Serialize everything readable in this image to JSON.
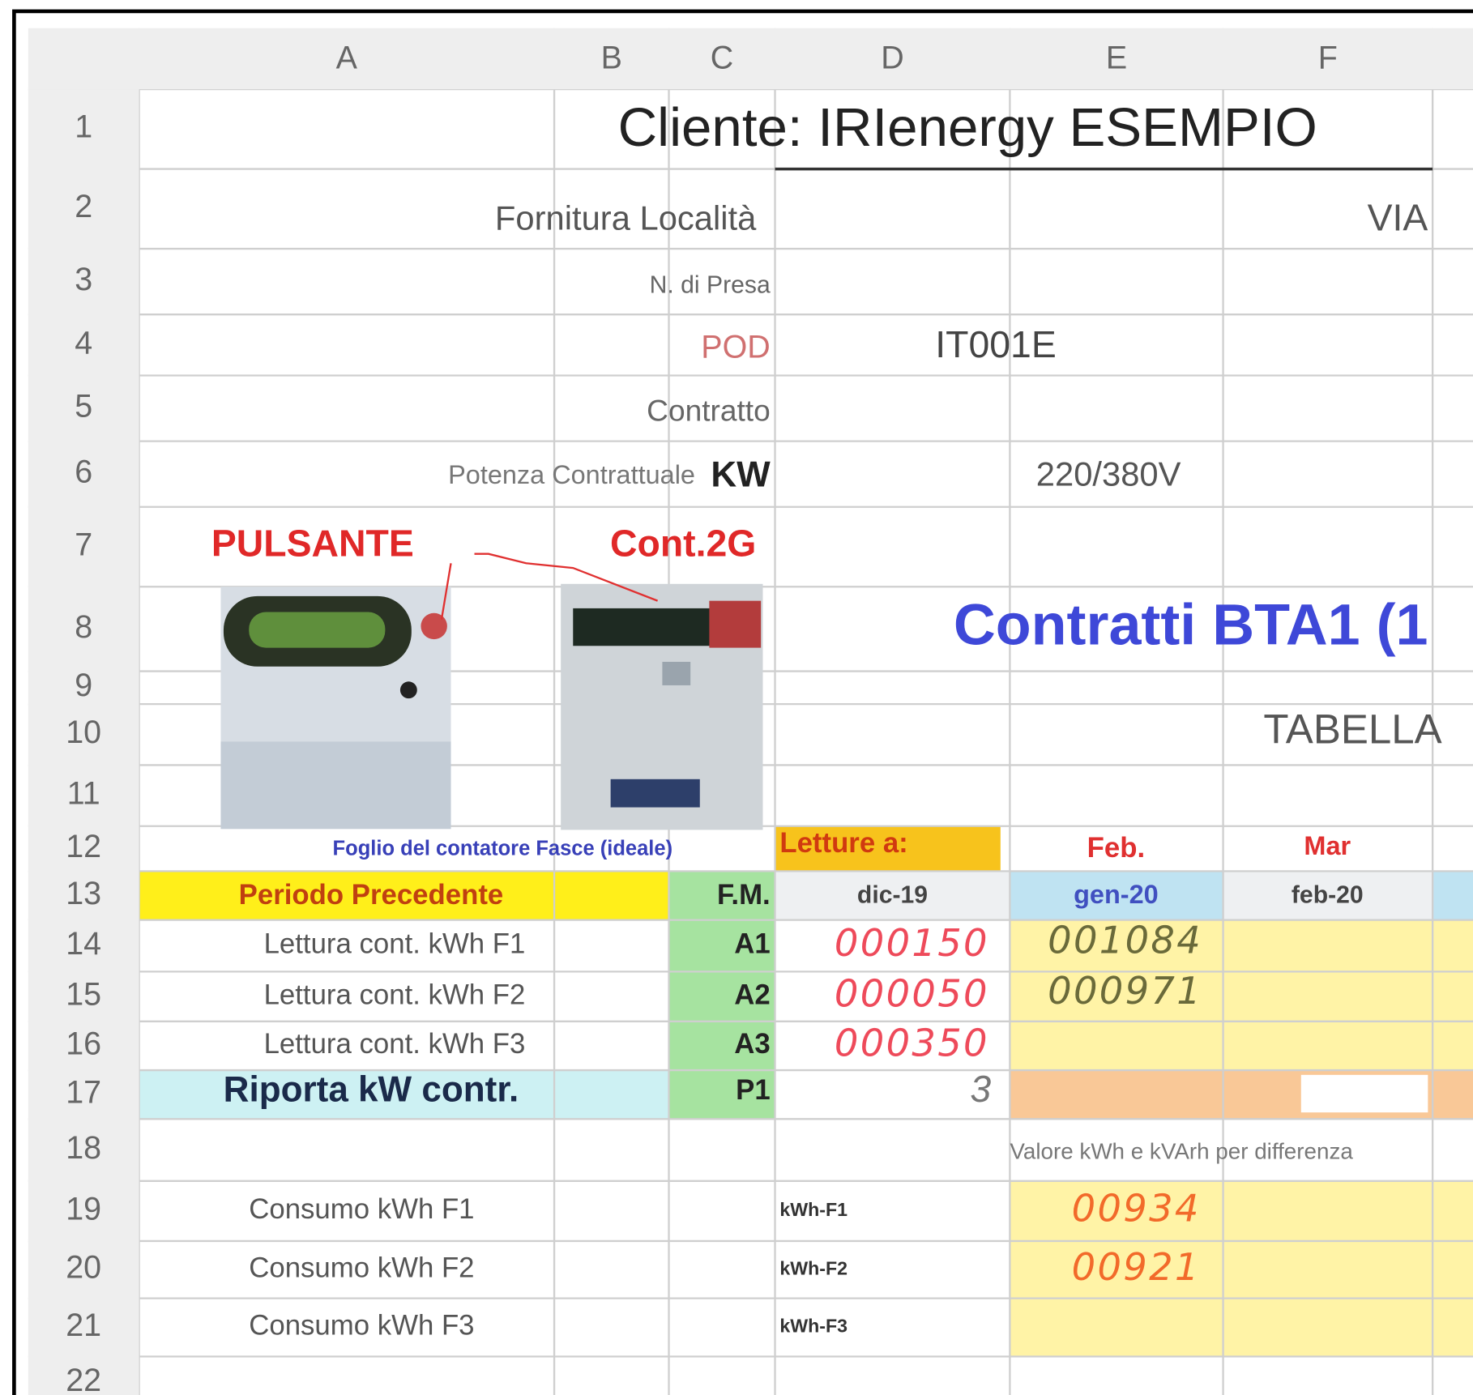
{
  "column_headers": [
    "A",
    "B",
    "C",
    "D",
    "E",
    "F"
  ],
  "row_headers": [
    "1",
    "2",
    "3",
    "4",
    "5",
    "6",
    "7",
    "8",
    "9",
    "10",
    "11",
    "12",
    "13",
    "14",
    "15",
    "16",
    "17",
    "18",
    "19",
    "20",
    "21",
    "22"
  ],
  "sheet": {
    "title": "Cliente: IRIenergy   ESEMPIO",
    "supply_location": "Fornitura Località",
    "street": "VIA",
    "outlet": "N. di Presa",
    "pod_label": "POD",
    "pod_value": "IT001E",
    "contract": "Contratto",
    "power_label": "Potenza Contrattuale",
    "power_unit": "KW",
    "voltage": "220/380V",
    "button": "PULSANTE",
    "meter": "Cont.2G",
    "heading": "Contratti BTA1 (1",
    "table_label": "TABELLA",
    "photo_caption": "Foglio del contatore Fasce (ideale)",
    "readings_at": "Letture a:",
    "feb": "Feb.",
    "mar": "Mar",
    "previous_period": "Periodo Precedente",
    "fm": "F.M.",
    "month_d": "dic-19",
    "month_e": "gen-20",
    "month_f": "feb-20",
    "readings": [
      {
        "label": "Lettura cont. kWh F1",
        "code": "A1",
        "previous": "000150",
        "current": "001084"
      },
      {
        "label": "Lettura cont. kWh F2",
        "code": "A2",
        "previous": "000050",
        "current": "000971"
      },
      {
        "label": "Lettura cont. kWh F3",
        "code": "A3",
        "previous": "000350"
      }
    ],
    "power_report": "Riporta kW contr.",
    "power_code": "P1",
    "power_value": "3",
    "difference_note": "Valore kWh e kVArh per differenza",
    "consumption": [
      {
        "label": "Consumo kWh F1",
        "code": "kWh-F1",
        "value": "00934"
      },
      {
        "label": "Consumo kWh F2",
        "code": "kWh-F2",
        "value": "00921"
      },
      {
        "label": "Consumo kWh F3",
        "code": "kWh-F3"
      }
    ]
  }
}
